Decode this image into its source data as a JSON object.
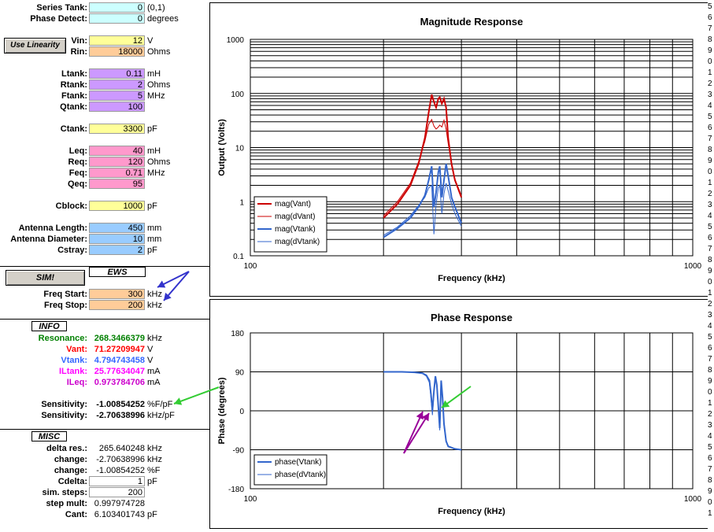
{
  "colors": {
    "cyan": "#ccffff",
    "yellow": "#ffff99",
    "orange": "#ffcc99",
    "purple": "#cc99ff",
    "pink": "#ff99cc",
    "blue": "#99ccff",
    "arrowBlue": "#3333cc",
    "arrowGreen": "#33cc33",
    "arrowMagenta": "#990099",
    "red": "#cc0000",
    "blueLine": "#3366cc"
  },
  "buttons": {
    "linearity": "Use Linearity",
    "sim": "SIM!"
  },
  "sections": {
    "ews": "EWS",
    "info": "INFO",
    "misc": "MISC"
  },
  "top": {
    "series_tank": {
      "label": "Series Tank:",
      "value": "0",
      "unit": "(0,1)"
    },
    "phase_detect": {
      "label": "Phase Detect:",
      "value": "0",
      "unit": "degrees"
    }
  },
  "inputs": [
    {
      "label": "Vin:",
      "value": "12",
      "unit": "V",
      "color": "yellow"
    },
    {
      "label": "Rin:",
      "value": "18000",
      "unit": "Ohms",
      "color": "orange"
    },
    {
      "label": "Ltank:",
      "value": "0.11",
      "unit": "mH",
      "color": "purple"
    },
    {
      "label": "Rtank:",
      "value": "2",
      "unit": "Ohms",
      "color": "purple"
    },
    {
      "label": "Ftank:",
      "value": "5",
      "unit": "MHz",
      "color": "purple"
    },
    {
      "label": "Qtank:",
      "value": "100",
      "unit": "",
      "color": "purple"
    },
    {
      "label": "Ctank:",
      "value": "3300",
      "unit": "pF",
      "color": "yellow"
    },
    {
      "label": "Leq:",
      "value": "40",
      "unit": "mH",
      "color": "pink"
    },
    {
      "label": "Req:",
      "value": "120",
      "unit": "Ohms",
      "color": "pink"
    },
    {
      "label": "Feq:",
      "value": "0.71",
      "unit": "MHz",
      "color": "pink"
    },
    {
      "label": "Qeq:",
      "value": "95",
      "unit": "",
      "color": "pink"
    },
    {
      "label": "Cblock:",
      "value": "1000",
      "unit": "pF",
      "color": "yellow"
    },
    {
      "label": "Antenna Length:",
      "value": "450",
      "unit": "mm",
      "color": "blue"
    },
    {
      "label": "Antenna Diameter:",
      "value": "10",
      "unit": "mm",
      "color": "blue"
    },
    {
      "label": "Cstray:",
      "value": "2",
      "unit": "pF",
      "color": "blue"
    }
  ],
  "freq": [
    {
      "label": "Freq Start:",
      "value": "300",
      "unit": "kHz"
    },
    {
      "label": "Freq Stop:",
      "value": "200",
      "unit": "kHz"
    }
  ],
  "info": [
    {
      "label": "Resonance:",
      "value": "268.3466379",
      "unit": "kHz",
      "color": "#008000"
    },
    {
      "label": "Vant:",
      "value": "71.27209947",
      "unit": "V",
      "color": "#ff0000"
    },
    {
      "label": "Vtank:",
      "value": "4.794743458",
      "unit": "V",
      "color": "#3366ff"
    },
    {
      "label": "ILtank:",
      "value": "25.77634047",
      "unit": "mA",
      "color": "#ff00ff"
    },
    {
      "label": "ILeq:",
      "value": "0.973784706",
      "unit": "mA",
      "color": "#cc00cc"
    }
  ],
  "sensitivity": [
    {
      "label": "Sensitivity:",
      "value": "-1.00854252",
      "unit": "%F/pF"
    },
    {
      "label": "Sensitivity:",
      "value": "-2.70638996",
      "unit": "kHz/pF"
    }
  ],
  "misc": [
    {
      "label": "delta res.:",
      "value": "265.640248",
      "unit": "kHz",
      "box": false
    },
    {
      "label": "change:",
      "value": "-2.70638996",
      "unit": "kHz",
      "box": false
    },
    {
      "label": "change:",
      "value": "-1.00854252",
      "unit": "%F",
      "box": false
    },
    {
      "label": "Cdelta:",
      "value": "1",
      "unit": "pF",
      "box": true
    },
    {
      "label": "sim. steps:",
      "value": "200",
      "unit": "",
      "box": true
    },
    {
      "label": "step mult:",
      "value": "0.997974728",
      "unit": "",
      "box": false
    },
    {
      "label": "Cant:",
      "value": "6.103401743",
      "unit": "pF",
      "box": false
    }
  ],
  "row_numbers": [
    "5",
    "6",
    "7",
    "8",
    "9",
    "0",
    "1",
    "2",
    "3",
    "4",
    "5",
    "6",
    "7",
    "8",
    "9",
    "0",
    "1",
    "2",
    "3",
    "4",
    "5",
    "6",
    "7",
    "8",
    "9",
    "0",
    "1",
    "2",
    "3",
    "4",
    "5",
    "6",
    "7",
    "8",
    "9",
    "0",
    "1",
    "2",
    "3",
    "4",
    "5",
    "6",
    "7",
    "8",
    "9",
    "0",
    "1"
  ],
  "chart_data": [
    {
      "type": "line",
      "title": "Magnitude Response",
      "xlabel": "Frequency (kHz)",
      "ylabel": "Output (Volts)",
      "xscale": "log",
      "yscale": "log",
      "xlim": [
        100,
        1000
      ],
      "ylim": [
        0.1,
        1000
      ],
      "xticks": [
        "100",
        "1000"
      ],
      "yticks": [
        "0.1",
        "1",
        "10",
        "100",
        "1000"
      ],
      "legend": "bottom-left",
      "series": [
        {
          "name": "mag(Vant)",
          "color": "#cc0000",
          "width": 2,
          "x": [
            200,
            215,
            230,
            240,
            248,
            253,
            257,
            260,
            263,
            266,
            268,
            271,
            274,
            277,
            280,
            285,
            290,
            300
          ],
          "y": [
            0.5,
            0.9,
            2.0,
            5,
            15,
            45,
            95,
            70,
            55,
            80,
            85,
            65,
            80,
            55,
            15,
            5,
            2.5,
            1.2
          ]
        },
        {
          "name": "mag(dVant)",
          "color": "#cc0000",
          "width": 1,
          "x": [
            200,
            215,
            230,
            240,
            248,
            253,
            257,
            260,
            263,
            266,
            268,
            271,
            274,
            277,
            280,
            285,
            290,
            300
          ],
          "y": [
            0.55,
            1.0,
            2.2,
            5.5,
            13,
            27,
            33,
            25,
            22,
            24,
            26,
            24,
            32,
            22,
            12,
            5,
            2.6,
            1.3
          ]
        },
        {
          "name": "mag(Vtank)",
          "color": "#3366cc",
          "width": 2,
          "x": [
            200,
            215,
            230,
            240,
            248,
            253,
            257,
            260,
            263,
            266,
            268,
            271,
            274,
            277,
            280,
            285,
            290,
            300
          ],
          "y": [
            0.22,
            0.32,
            0.5,
            0.8,
            1.3,
            2.5,
            4.5,
            0.8,
            1.5,
            3.5,
            4.5,
            1.2,
            2.5,
            5.0,
            3.0,
            1.2,
            0.8,
            0.4
          ]
        },
        {
          "name": "mag(dVtank)",
          "color": "#3366cc",
          "width": 1,
          "x": [
            200,
            215,
            230,
            240,
            248,
            253,
            257,
            260,
            263,
            266,
            268,
            271,
            274,
            277,
            280,
            285,
            290,
            300
          ],
          "y": [
            0.24,
            0.34,
            0.55,
            0.85,
            1.2,
            1.8,
            2.0,
            0.25,
            0.9,
            1.8,
            2.0,
            0.6,
            1.4,
            2.2,
            1.6,
            0.9,
            0.6,
            0.35
          ]
        }
      ]
    },
    {
      "type": "line",
      "title": "Phase Response",
      "xlabel": "Frequency (kHz)",
      "ylabel": "Phase (degrees)",
      "xscale": "log",
      "xlim": [
        100,
        1000
      ],
      "ylim": [
        -180,
        180
      ],
      "xticks": [
        "100",
        "1000"
      ],
      "yticks": [
        "180",
        "90",
        "0",
        "-90",
        "-180"
      ],
      "legend": "bottom-left",
      "series": [
        {
          "name": "phase(Vtank)",
          "color": "#3366cc",
          "width": 2,
          "x": [
            200,
            220,
            235,
            245,
            250,
            254,
            256,
            258,
            260,
            262,
            264,
            266,
            268,
            270,
            272,
            274,
            277,
            280,
            290,
            300
          ],
          "y": [
            90,
            90,
            89,
            87,
            82,
            70,
            40,
            0,
            45,
            80,
            60,
            10,
            -40,
            70,
            30,
            -30,
            -70,
            -82,
            -88,
            -90
          ]
        },
        {
          "name": "phase(dVtank)",
          "color": "#3366cc",
          "width": 1,
          "x": [
            200,
            220,
            235,
            245,
            250,
            254,
            256,
            258,
            260,
            262,
            264,
            266,
            268,
            270,
            272,
            274,
            277,
            280,
            290,
            300
          ],
          "y": [
            90,
            90,
            89,
            86,
            80,
            65,
            30,
            -10,
            40,
            75,
            55,
            5,
            -45,
            65,
            25,
            -35,
            -72,
            -83,
            -88,
            -90
          ]
        }
      ]
    }
  ]
}
